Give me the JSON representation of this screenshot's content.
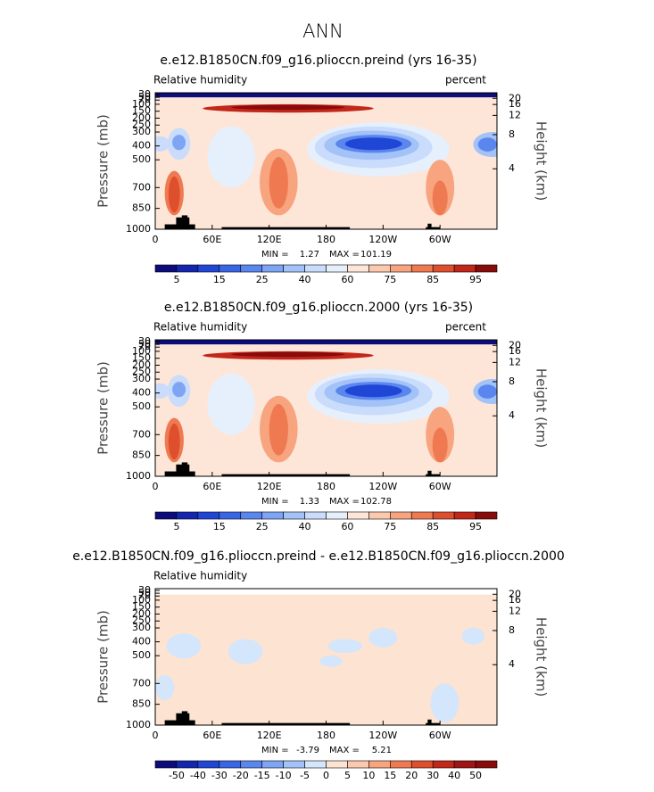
{
  "title": "ANN",
  "chart_data": [
    {
      "type": "contour",
      "title": "e.e12.B1850CN.f09_g16.plioccn.preind (yrs 16-35)",
      "variable": "Relative humidity",
      "units": "percent",
      "ylabel": "Pressure (mb)",
      "y2label": "Height (km)",
      "xlim": [
        0,
        360
      ],
      "xticks": [
        0,
        {
          "value": 60,
          "label": "60E"
        },
        {
          "value": 120,
          "label": "120E"
        },
        180,
        {
          "value": 240,
          "label": "120W"
        },
        {
          "value": 300,
          "label": "60W"
        }
      ],
      "ylim": [
        1000,
        30
      ],
      "yticks": [
        1000,
        850,
        700,
        500,
        400,
        300,
        250,
        200,
        150,
        100,
        70,
        50,
        30
      ],
      "y2ticks": [
        4,
        8,
        12,
        16,
        20
      ],
      "min_label": "MIN =",
      "min": 1.27,
      "max_label": "MAX =",
      "max": 101.19,
      "levels": [
        5,
        10,
        15,
        20,
        25,
        30,
        40,
        50,
        60,
        70,
        75,
        80,
        85,
        90,
        95
      ],
      "colorbar_ticks": [
        5,
        15,
        25,
        40,
        60,
        75,
        85,
        95
      ],
      "colors": [
        "#0c0c7a",
        "#1426b0",
        "#2046d6",
        "#3a66e6",
        "#5a86ee",
        "#7ea4f4",
        "#a3c2f8",
        "#c9dcfb",
        "#e6f0fd",
        "#fde6d8",
        "#fbc9ad",
        "#f7a47f",
        "#ef7a52",
        "#de4f2d",
        "#c2271a",
        "#8a0b0b"
      ]
    },
    {
      "type": "contour",
      "title": "e.e12.B1850CN.f09_g16.plioccn.2000 (yrs 16-35)",
      "variable": "Relative humidity",
      "units": "percent",
      "ylabel": "Pressure (mb)",
      "y2label": "Height (km)",
      "xlim": [
        0,
        360
      ],
      "xticks": [
        0,
        {
          "value": 60,
          "label": "60E"
        },
        {
          "value": 120,
          "label": "120E"
        },
        180,
        {
          "value": 240,
          "label": "120W"
        },
        {
          "value": 300,
          "label": "60W"
        }
      ],
      "ylim": [
        1000,
        30
      ],
      "yticks": [
        1000,
        850,
        700,
        500,
        400,
        300,
        250,
        200,
        150,
        100,
        70,
        50,
        30
      ],
      "y2ticks": [
        4,
        8,
        12,
        16,
        20
      ],
      "min_label": "MIN =",
      "min": 1.33,
      "max_label": "MAX =",
      "max": 102.78,
      "levels": [
        5,
        10,
        15,
        20,
        25,
        30,
        40,
        50,
        60,
        70,
        75,
        80,
        85,
        90,
        95
      ],
      "colorbar_ticks": [
        5,
        15,
        25,
        40,
        60,
        75,
        85,
        95
      ],
      "colors": [
        "#0c0c7a",
        "#1426b0",
        "#2046d6",
        "#3a66e6",
        "#5a86ee",
        "#7ea4f4",
        "#a3c2f8",
        "#c9dcfb",
        "#e6f0fd",
        "#fde6d8",
        "#fbc9ad",
        "#f7a47f",
        "#ef7a52",
        "#de4f2d",
        "#c2271a",
        "#8a0b0b"
      ]
    },
    {
      "type": "contour",
      "title": "e.e12.B1850CN.f09_g16.plioccn.preind - e.e12.B1850CN.f09_g16.plioccn.2000",
      "variable": "Relative humidity",
      "ylabel": "Pressure (mb)",
      "y2label": "Height (km)",
      "xlim": [
        0,
        360
      ],
      "xticks": [
        0,
        {
          "value": 60,
          "label": "60E"
        },
        {
          "value": 120,
          "label": "120E"
        },
        180,
        {
          "value": 240,
          "label": "120W"
        },
        {
          "value": 300,
          "label": "60W"
        }
      ],
      "ylim": [
        1000,
        30
      ],
      "yticks": [
        1000,
        850,
        700,
        500,
        400,
        300,
        250,
        200,
        150,
        100,
        70,
        50,
        30
      ],
      "y2ticks": [
        4,
        8,
        12,
        16,
        20
      ],
      "min_label": "MIN =",
      "min": -3.79,
      "max_label": "MAX =",
      "max": 5.21,
      "levels": [
        -50,
        -40,
        -30,
        -20,
        -15,
        -10,
        -5,
        0,
        5,
        10,
        15,
        20,
        30,
        40,
        50
      ],
      "colors": [
        "#0c0c7a",
        "#1426b0",
        "#2046d6",
        "#3a66e6",
        "#5a86ee",
        "#7ea4f4",
        "#a3c2f8",
        "#d3e6fc",
        "#fde3d1",
        "#fbc9ad",
        "#f7a47f",
        "#ef7a52",
        "#de4f2d",
        "#c2271a",
        "#a01515",
        "#8a0b0b"
      ]
    }
  ]
}
